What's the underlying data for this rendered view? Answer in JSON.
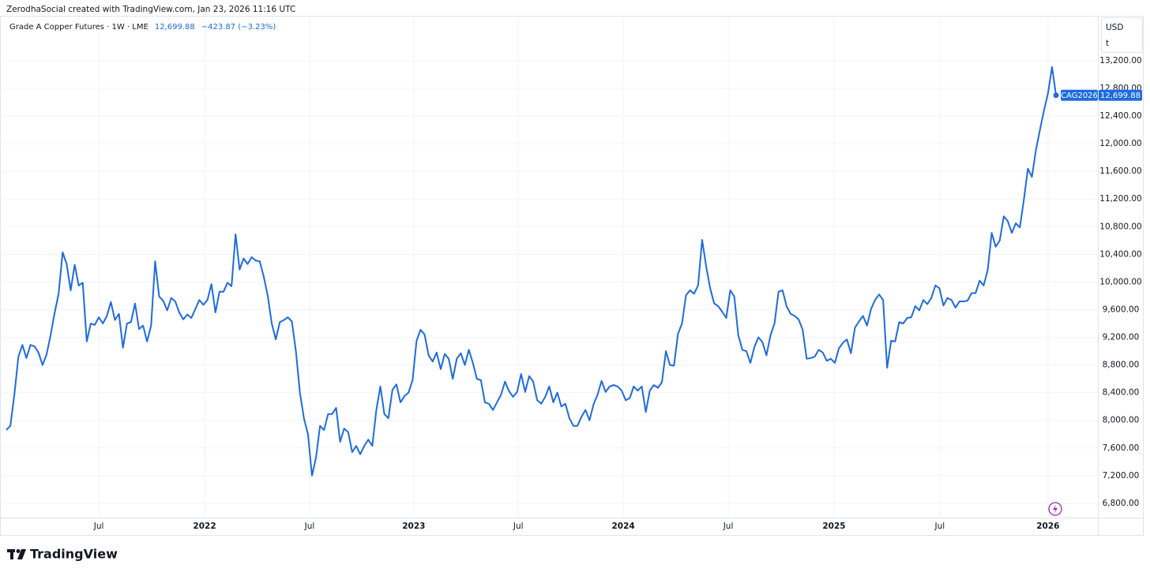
{
  "header": {
    "attribution": "ZerodhaSocial created with TradingView.com, Jan 23, 2026 11:16 UTC",
    "logo_text": "TradingView"
  },
  "chart_data": {
    "type": "line",
    "title": "Grade A Copper Futures · 1W · LME",
    "price_label": "12,699.88",
    "change_label": "−423.87 (−3.23%)",
    "currency": "USD",
    "unit": "t",
    "grid": true,
    "xlim": [
      0,
      271.4
    ],
    "xticks": [
      {
        "value": 23.0,
        "label": "Jul"
      },
      {
        "value": 49.3,
        "label": "2022"
      },
      {
        "value": 75.4,
        "label": "Jul"
      },
      {
        "value": 101.3,
        "label": "2023"
      },
      {
        "value": 127.3,
        "label": "Jul"
      },
      {
        "value": 153.4,
        "label": "2024"
      },
      {
        "value": 179.5,
        "label": "Jul"
      },
      {
        "value": 205.8,
        "label": "2025"
      },
      {
        "value": 232.1,
        "label": "Jul"
      },
      {
        "value": 259.0,
        "label": "2026"
      }
    ],
    "ylim": [
      6600,
      13850
    ],
    "yticks": [
      {
        "value": 6800,
        "label": "6,800.00"
      },
      {
        "value": 7200,
        "label": "7,200.00"
      },
      {
        "value": 7600,
        "label": "7,600.00"
      },
      {
        "value": 8000,
        "label": "8,000.00"
      },
      {
        "value": 8400,
        "label": "8,400.00"
      },
      {
        "value": 8800,
        "label": "8,800.00"
      },
      {
        "value": 9200,
        "label": "9,200.00"
      },
      {
        "value": 9600,
        "label": "9,600.00"
      },
      {
        "value": 10000,
        "label": "10,000.00"
      },
      {
        "value": 10400,
        "label": "10,400.00"
      },
      {
        "value": 10800,
        "label": "10,800.00"
      },
      {
        "value": 11200,
        "label": "11,200.00"
      },
      {
        "value": 11600,
        "label": "11,600.00"
      },
      {
        "value": 12000,
        "label": "12,000.00"
      },
      {
        "value": 12400,
        "label": "12,400.00"
      },
      {
        "value": 12800,
        "label": "12,800.00"
      },
      {
        "value": 13200,
        "label": "13,200.00"
      }
    ],
    "series": [
      {
        "name": "CAG2026",
        "color": "#1e6be0",
        "values": [
          7860,
          7920,
          8370,
          8920,
          9090,
          8900,
          9090,
          9070,
          8980,
          8800,
          8950,
          9230,
          9550,
          9830,
          10430,
          10260,
          9880,
          10250,
          9950,
          9990,
          9140,
          9400,
          9380,
          9490,
          9400,
          9510,
          9710,
          9450,
          9540,
          9050,
          9400,
          9420,
          9690,
          9320,
          9370,
          9140,
          9370,
          10300,
          9790,
          9730,
          9590,
          9770,
          9720,
          9560,
          9460,
          9530,
          9480,
          9610,
          9740,
          9670,
          9740,
          9970,
          9560,
          9860,
          9860,
          9990,
          9940,
          10690,
          10180,
          10340,
          10260,
          10360,
          10310,
          10300,
          10080,
          9800,
          9400,
          9170,
          9420,
          9450,
          9490,
          9430,
          9000,
          8400,
          8030,
          7800,
          7200,
          7460,
          7920,
          7860,
          8090,
          8090,
          8180,
          7690,
          7880,
          7830,
          7540,
          7630,
          7510,
          7630,
          7720,
          7630,
          8150,
          8490,
          8090,
          8030,
          8440,
          8520,
          8260,
          8350,
          8400,
          8580,
          9150,
          9310,
          9240,
          8940,
          8850,
          8980,
          8740,
          8960,
          8890,
          8600,
          8890,
          8970,
          8800,
          9020,
          8830,
          8600,
          8580,
          8260,
          8240,
          8150,
          8260,
          8370,
          8560,
          8420,
          8340,
          8410,
          8670,
          8410,
          8640,
          8560,
          8290,
          8240,
          8340,
          8490,
          8260,
          8400,
          8200,
          8240,
          8030,
          7920,
          7920,
          8050,
          8150,
          8000,
          8230,
          8370,
          8570,
          8410,
          8490,
          8510,
          8490,
          8430,
          8290,
          8320,
          8490,
          8430,
          8490,
          8120,
          8430,
          8510,
          8470,
          8550,
          9000,
          8800,
          8790,
          9250,
          9400,
          9810,
          9880,
          9830,
          9950,
          10610,
          10230,
          9910,
          9690,
          9650,
          9570,
          9480,
          9880,
          9790,
          9230,
          9020,
          9000,
          8830,
          9060,
          9200,
          9130,
          8940,
          9230,
          9400,
          9860,
          9880,
          9650,
          9540,
          9510,
          9460,
          9310,
          8890,
          8900,
          8920,
          9020,
          8980,
          8860,
          8890,
          8830,
          9040,
          9120,
          9170,
          8970,
          9340,
          9430,
          9510,
          9370,
          9610,
          9740,
          9820,
          9740,
          8760,
          9150,
          9140,
          9420,
          9400,
          9480,
          9490,
          9650,
          9590,
          9740,
          9680,
          9770,
          9950,
          9910,
          9660,
          9770,
          9740,
          9630,
          9720,
          9720,
          9730,
          9840,
          9840,
          10020,
          9950,
          10170,
          10710,
          10510,
          10600,
          10950,
          10880,
          10710,
          10850,
          10790,
          11190,
          11640,
          11520,
          11910,
          12200,
          12480,
          12730,
          13110,
          12699.88
        ]
      }
    ]
  }
}
